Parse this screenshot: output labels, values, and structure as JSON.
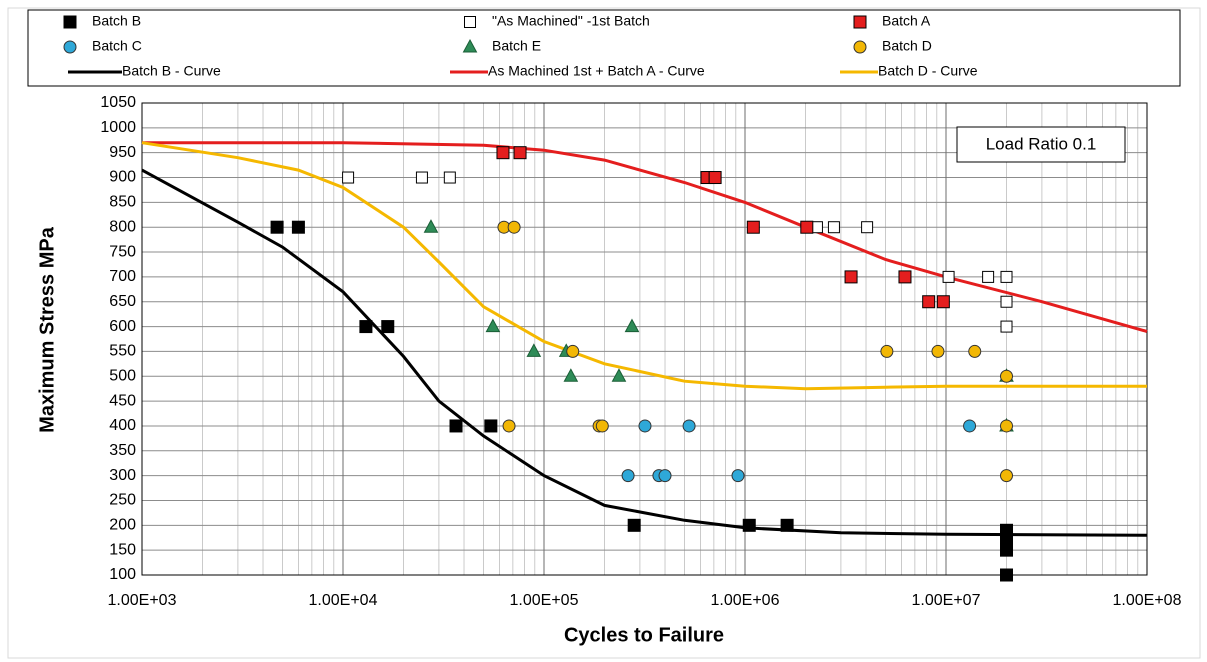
{
  "chart_data": {
    "type": "scatter",
    "x_label": "Cycles to Failure",
    "y_label": "Maximum Stress MPa",
    "annotation": "Load Ratio 0.1",
    "log_x": true,
    "grid": true,
    "xlim": [
      1000,
      100000000
    ],
    "ylim": [
      100,
      1050
    ],
    "xticks": [
      {
        "value": 1000,
        "label": "1.00E+03"
      },
      {
        "value": 10000,
        "label": "1.00E+04"
      },
      {
        "value": 100000,
        "label": "1.00E+05"
      },
      {
        "value": 1000000,
        "label": "1.00E+06"
      },
      {
        "value": 10000000,
        "label": "1.00E+07"
      },
      {
        "value": 100000000,
        "label": "1.00E+08"
      }
    ],
    "yticks": [
      100,
      150,
      200,
      250,
      300,
      350,
      400,
      450,
      500,
      550,
      600,
      650,
      700,
      750,
      800,
      850,
      900,
      950,
      1000,
      1050
    ],
    "series": [
      {
        "name": "Batch B",
        "color": "#000000",
        "marker": "square",
        "x": [
          4700,
          6000,
          13000,
          16700,
          36500,
          54400,
          281000,
          1050000,
          1620000,
          20000000,
          20000000,
          20000000,
          20000000
        ],
        "values": [
          800,
          800,
          600,
          600,
          400,
          400,
          200,
          200,
          200,
          190,
          175,
          150,
          100
        ]
      },
      {
        "name": "\"As Machined\" -1st Batch",
        "color": "#000000",
        "marker": "square-open",
        "x": [
          10600,
          24700,
          34000,
          2280000,
          2770000,
          4050000,
          10300000,
          16200000,
          20000000,
          20000000,
          20000000
        ],
        "values": [
          900,
          900,
          900,
          800,
          800,
          800,
          700,
          700,
          700,
          650,
          600
        ]
      },
      {
        "name": "Batch A",
        "color": "#e41e1e",
        "marker": "square",
        "x": [
          62500,
          76000,
          647000,
          710000,
          1100000,
          2030000,
          3370000,
          6250000,
          8200000,
          9700000
        ],
        "values": [
          950,
          950,
          900,
          900,
          800,
          800,
          700,
          700,
          650,
          650
        ]
      },
      {
        "name": "Batch C",
        "color": "#2ea8d8",
        "marker": "circle",
        "x": [
          262000,
          318000,
          373000,
          400000,
          527000,
          923000,
          13100000
        ],
        "values": [
          300,
          400,
          300,
          300,
          400,
          300,
          400
        ]
      },
      {
        "name": "Batch E",
        "color": "#2e8b57",
        "marker": "triangle",
        "x": [
          27400,
          55700,
          89000,
          129000,
          136000,
          236000,
          274000,
          20000000,
          20000000
        ],
        "values": [
          800,
          600,
          550,
          550,
          500,
          500,
          600,
          500,
          400
        ]
      },
      {
        "name": "Batch D",
        "color": "#f2b705",
        "marker": "circle",
        "x": [
          63200,
          71000,
          67000,
          139000,
          188000,
          195000,
          5080000,
          9120000,
          13900000,
          20000000,
          20000000,
          20000000
        ],
        "values": [
          800,
          800,
          400,
          550,
          400,
          400,
          550,
          550,
          550,
          500,
          400,
          300
        ]
      },
      {
        "name": "Batch B - Curve",
        "color": "#000000",
        "marker": "line",
        "x": [
          1000,
          3000,
          5000,
          10000,
          20000,
          30000,
          50000,
          100000,
          200000,
          500000,
          1000000,
          3000000,
          10000000,
          100000000
        ],
        "values": [
          915,
          810,
          760,
          670,
          540,
          450,
          380,
          300,
          240,
          210,
          195,
          185,
          182,
          180
        ]
      },
      {
        "name": "As Machined 1st + Batch A - Curve",
        "color": "#e41e1e",
        "marker": "line",
        "x": [
          1000,
          10000,
          50000,
          100000,
          200000,
          500000,
          1000000,
          2000000,
          5000000,
          10000000,
          30000000,
          100000000
        ],
        "values": [
          970,
          970,
          965,
          955,
          935,
          890,
          850,
          800,
          735,
          700,
          650,
          590
        ]
      },
      {
        "name": "Batch D - Curve",
        "color": "#f5b800",
        "marker": "line",
        "x": [
          1000,
          3000,
          6000,
          10000,
          20000,
          30000,
          50000,
          100000,
          200000,
          500000,
          1000000,
          2000000,
          5000000,
          10000000,
          100000000
        ],
        "values": [
          970,
          940,
          915,
          880,
          800,
          730,
          640,
          570,
          525,
          490,
          480,
          475,
          478,
          480,
          480
        ]
      }
    ]
  }
}
